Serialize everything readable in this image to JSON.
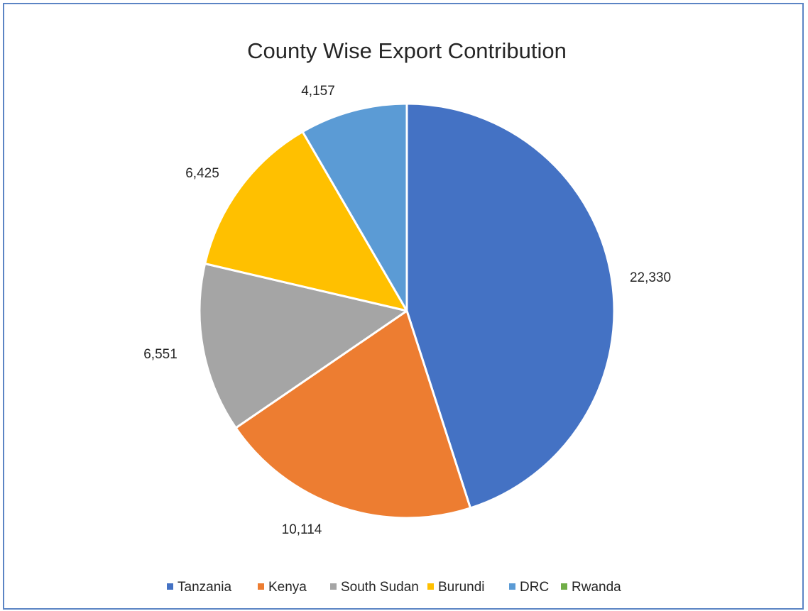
{
  "chart_data": {
    "type": "pie",
    "title": "County Wise Export Contribution",
    "categories": [
      "Tanzania",
      "Kenya",
      "South Sudan",
      "Burundi",
      "DRC",
      "Rwanda"
    ],
    "values": [
      22330,
      10114,
      6551,
      6425,
      4157,
      0
    ],
    "data_labels": [
      "22,330",
      "10,114",
      "6,551",
      "6,425",
      "4,157",
      ""
    ],
    "colors": [
      "#4472c4",
      "#ed7d31",
      "#a5a5a5",
      "#ffc000",
      "#5b9bd5",
      "#70ad47"
    ],
    "legend": {
      "position": "bottom",
      "entries": [
        "Tanzania",
        "Kenya",
        "South Sudan",
        "Burundi",
        "DRC",
        "Rwanda"
      ]
    },
    "start_angle": "12 o'clock",
    "direction": "clockwise"
  }
}
